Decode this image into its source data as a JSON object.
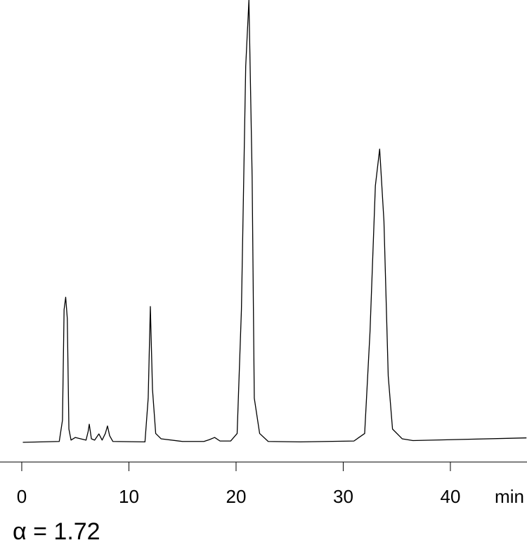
{
  "chart_data": {
    "type": "line",
    "x": [
      0.1,
      3.5,
      3.8,
      3.95,
      4.1,
      4.25,
      4.4,
      4.6,
      5.0,
      5.5,
      6.0,
      6.2,
      6.3,
      6.5,
      6.8,
      7.2,
      7.5,
      7.8,
      8.0,
      8.2,
      8.5,
      11.5,
      11.8,
      12.0,
      12.2,
      12.5,
      13,
      15,
      17,
      17.5,
      18.0,
      18.5,
      19.5,
      20.1,
      20.5,
      20.9,
      21.2,
      21.5,
      21.7,
      22.2,
      23,
      26,
      31,
      32,
      32.5,
      33.0,
      33.4,
      33.8,
      34.2,
      34.6,
      35.5,
      36.5,
      40,
      47.1
    ],
    "values": [
      0,
      0.2,
      5,
      30,
      32.8,
      28,
      3,
      0.5,
      1.1,
      0.8,
      0.5,
      2.5,
      4.1,
      0.8,
      0.5,
      1.9,
      0.5,
      2,
      3.7,
      1.5,
      0.2,
      0.1,
      10,
      30.7,
      12,
      2,
      0.8,
      0.2,
      0.2,
      0.6,
      1.1,
      0.3,
      0.3,
      2,
      30,
      85,
      100,
      60,
      10,
      2,
      0.2,
      0.1,
      0.3,
      2,
      25,
      58,
      66.3,
      50,
      15,
      3,
      0.8,
      0.4,
      0.6,
      1.0
    ],
    "color": "#000000",
    "xlim": [
      -2.03,
      47.15
    ],
    "xticks": [
      0,
      10,
      20,
      30,
      40
    ],
    "xlabel": "min",
    "ylim": [
      0,
      100
    ],
    "annotation": "α = 1.72"
  }
}
